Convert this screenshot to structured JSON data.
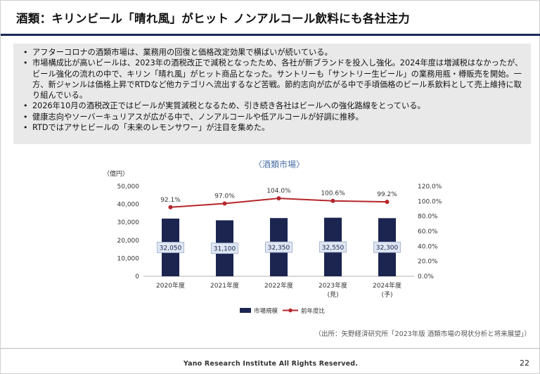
{
  "slide": {
    "title": "酒類：キリンビール「晴れ風」がヒット ノンアルコール飲料にも各社注力",
    "bullets": [
      "アフターコロナの酒類市場は、業務用の回復と価格改定効果で横ばいが続いている。",
      "市場構成比が高いビールは、2023年の酒税改正で減税となったため、各社が新ブランドを投入し強化。2024年度は増減税はなかったが、ビール強化の流れの中で、キリン「晴れ風」がヒット商品となった。サントリーも「サントリー生ビール」の業務用瓶・樽販売を開始。一方、新ジャンルは価格上昇でRTDなど他カテゴリへ流出するなど苦戦。節約志向が広がる中で手頃価格のビール系飲料として売上維持に取り組んでいる。",
      "2026年10月の酒税改正ではビールが実質減税となるため、引き続き各社はビールへの強化路線をとっている。",
      "健康志向やソーバーキュリアスが広がる中で、ノンアルコールや低アルコールが好調に推移。",
      "RTDではアサヒビールの「未来のレモンサワー」が注目を集めた。"
    ],
    "source": "（出所：矢野経済研究所「2023年版 酒類市場の現状分析と将来展望」）",
    "footer": "Yano Research Institute All Rights Reserved.",
    "page_number": "22"
  },
  "chart_data": {
    "type": "bar",
    "title": "〈酒類市場〉",
    "ylabel": "（億円）",
    "categories": [
      "2020年度",
      "2021年度",
      "2022年度",
      "2023年度",
      "2024年度"
    ],
    "category_sublabels": [
      "",
      "",
      "",
      "(見)",
      "(予)"
    ],
    "ylim": [
      0,
      50000
    ],
    "yticks": [
      "50,000",
      "40,000",
      "30,000",
      "20,000",
      "10,000",
      "0"
    ],
    "y2lim": [
      0,
      120
    ],
    "y2ticks": [
      "120.0%",
      "100.0%",
      "80.0%",
      "60.0%",
      "40.0%",
      "20.0%",
      "0.0%"
    ],
    "series": [
      {
        "name": "市場規模",
        "type": "bar",
        "color": "#1b2550",
        "values": [
          32050,
          31100,
          32350,
          32550,
          32300
        ],
        "labels": [
          "32,050",
          "31,100",
          "32,350",
          "32,550",
          "32,300"
        ]
      },
      {
        "name": "前年度比",
        "type": "line",
        "axis": "right",
        "color": "#b5262b",
        "values": [
          92.1,
          97.0,
          104.0,
          100.6,
          99.2
        ],
        "labels": [
          "92.1%",
          "97.0%",
          "104.0%",
          "100.6%",
          "99.2%"
        ]
      }
    ],
    "legend_position": "bottom",
    "grid": false
  }
}
